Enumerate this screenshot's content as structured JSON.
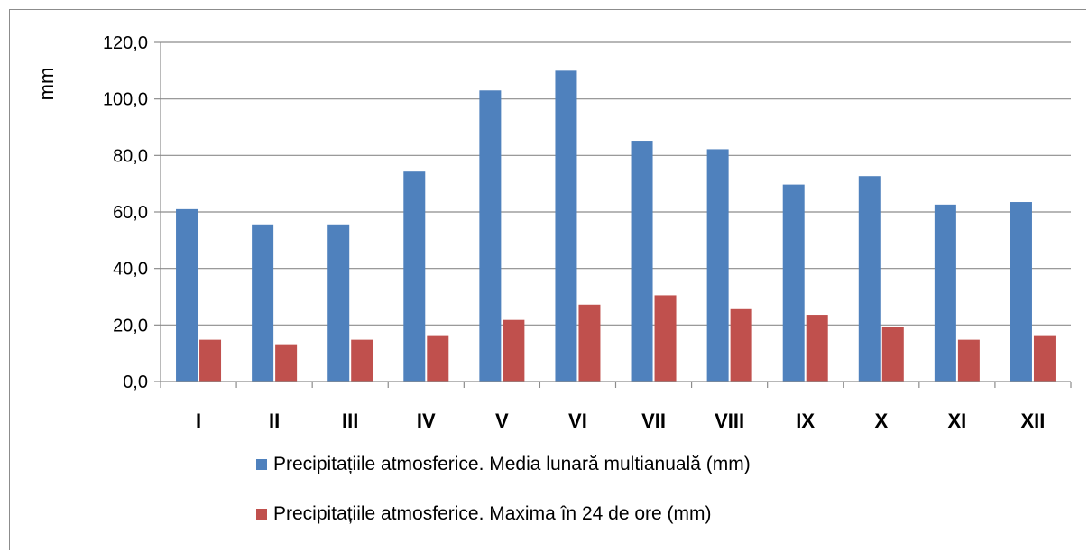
{
  "chart_data": {
    "type": "bar",
    "title": "",
    "xlabel": "",
    "ylabel": "mm",
    "ylim": [
      0,
      120
    ],
    "yticks": [
      "0,0",
      "20,0",
      "40,0",
      "60,0",
      "80,0",
      "100,0",
      "120,0"
    ],
    "ytick_values": [
      0,
      20,
      40,
      60,
      80,
      100,
      120
    ],
    "categories": [
      "I",
      "II",
      "III",
      "IV",
      "V",
      "VI",
      "VII",
      "VIII",
      "IX",
      "X",
      "XI",
      "XII"
    ],
    "grid": true,
    "legend_position": "bottom",
    "series": [
      {
        "name": "Precipitațiile atmosferice. Media lunară multianuală (mm)",
        "color": "#4f81bd",
        "values": [
          61.0,
          55.6,
          55.6,
          74.3,
          103.0,
          110.0,
          85.2,
          82.2,
          69.7,
          72.7,
          62.6,
          63.5
        ]
      },
      {
        "name": "Precipitațiile atmosferice. Maxima în 24 de ore (mm)",
        "color": "#c0504d",
        "values": [
          14.8,
          13.2,
          14.8,
          16.4,
          21.8,
          27.2,
          30.5,
          25.6,
          23.6,
          19.3,
          14.8,
          16.4
        ]
      }
    ]
  }
}
